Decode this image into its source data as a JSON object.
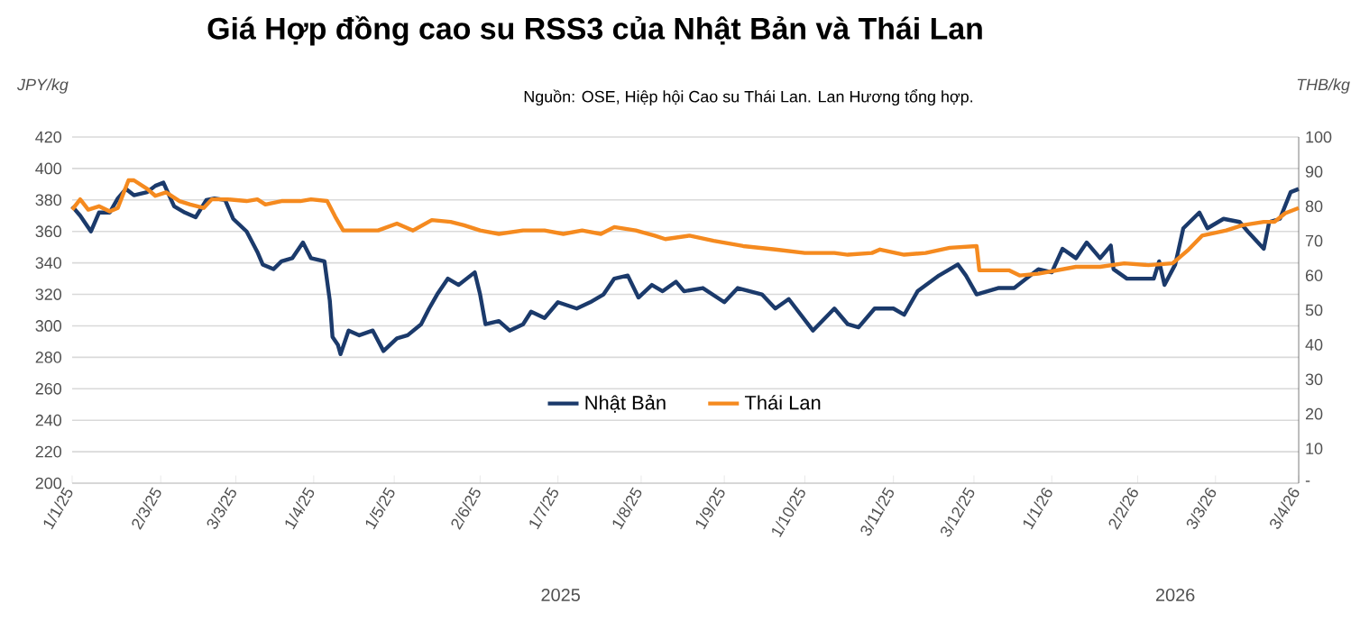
{
  "chart_data": {
    "type": "line",
    "title": "Giá Hợp đồng cao su RSS3 của Nhật Bản và Thái Lan",
    "ylabel": "JPY/kg",
    "y2label": "THB/kg",
    "annotations": [
      "Nguồn: OSE, Hiệp hội Cao su Thái Lan. Lan Hương tổng hợp.",
      "2025",
      "2026"
    ],
    "xlim": [
      "2025-01-01",
      "2026-04-03"
    ],
    "xticks": [
      {
        "value": "2025-01-01",
        "label": "1/1/25"
      },
      {
        "value": "2025-02-03",
        "label": "2/3/25"
      },
      {
        "value": "2025-03-03",
        "label": "3/3/25"
      },
      {
        "value": "2025-04-01",
        "label": "1/4/25"
      },
      {
        "value": "2025-05-01",
        "label": "1/5/25"
      },
      {
        "value": "2025-06-02",
        "label": "2/6/25"
      },
      {
        "value": "2025-07-01",
        "label": "1/7/25"
      },
      {
        "value": "2025-08-01",
        "label": "1/8/25"
      },
      {
        "value": "2025-09-01",
        "label": "1/9/25"
      },
      {
        "value": "2025-10-01",
        "label": "1/10/25"
      },
      {
        "value": "2025-11-03",
        "label": "3/11/25"
      },
      {
        "value": "2025-12-03",
        "label": "3/12/25"
      },
      {
        "value": "2026-01-01",
        "label": "1/1/26"
      },
      {
        "value": "2026-02-02",
        "label": "2/2/26"
      },
      {
        "value": "2026-03-03",
        "label": "3/3/26"
      },
      {
        "value": "2026-04-03",
        "label": "3/4/26"
      }
    ],
    "ylim": [
      200,
      420
    ],
    "yticks": [
      200,
      220,
      240,
      260,
      280,
      300,
      320,
      340,
      360,
      380,
      400,
      420
    ],
    "y2lim": [
      0,
      100
    ],
    "y2ticks": [
      {
        "value": 0,
        "label": "-"
      },
      10,
      20,
      30,
      40,
      50,
      60,
      70,
      80,
      90,
      100
    ],
    "grid": "y",
    "legend": "bottom",
    "marker": "none",
    "line_style": "solid",
    "series": [
      {
        "name": "Nhật Bản",
        "color": "#1b3a6b",
        "x": [
          "2025-01-01",
          "2025-01-04",
          "2025-01-08",
          "2025-01-11",
          "2025-01-15",
          "2025-01-18",
          "2025-01-21",
          "2025-01-24",
          "2025-01-29",
          "2025-02-01",
          "2025-02-04",
          "2025-02-08",
          "2025-02-12",
          "2025-02-16",
          "2025-02-20",
          "2025-02-23",
          "2025-02-27",
          "2025-03-02",
          "2025-03-07",
          "2025-03-11",
          "2025-03-13",
          "2025-03-17",
          "2025-03-20",
          "2025-03-24",
          "2025-03-28",
          "2025-03-31",
          "2025-04-05",
          "2025-04-07",
          "2025-04-08",
          "2025-04-10",
          "2025-04-11",
          "2025-04-14",
          "2025-04-18",
          "2025-04-23",
          "2025-04-27",
          "2025-05-02",
          "2025-05-06",
          "2025-05-11",
          "2025-05-14",
          "2025-05-17",
          "2025-05-21",
          "2025-05-25",
          "2025-05-31",
          "2025-06-02",
          "2025-06-04",
          "2025-06-09",
          "2025-06-13",
          "2025-06-18",
          "2025-06-21",
          "2025-06-26",
          "2025-07-01",
          "2025-07-08",
          "2025-07-13",
          "2025-07-18",
          "2025-07-22",
          "2025-07-27",
          "2025-07-31",
          "2025-08-05",
          "2025-08-09",
          "2025-08-14",
          "2025-08-17",
          "2025-08-24",
          "2025-09-01",
          "2025-09-06",
          "2025-09-15",
          "2025-09-20",
          "2025-09-25",
          "2025-10-04",
          "2025-10-12",
          "2025-10-17",
          "2025-10-21",
          "2025-10-27",
          "2025-11-03",
          "2025-11-07",
          "2025-11-12",
          "2025-11-20",
          "2025-11-27",
          "2025-11-30",
          "2025-12-04",
          "2025-12-12",
          "2025-12-18",
          "2025-12-27",
          "2026-01-01",
          "2026-01-05",
          "2026-01-10",
          "2026-01-14",
          "2026-01-19",
          "2026-01-23",
          "2026-01-24",
          "2026-01-29",
          "2026-02-08",
          "2026-02-10",
          "2026-02-12",
          "2026-02-16",
          "2026-02-19",
          "2026-02-25",
          "2026-02-28",
          "2026-03-06",
          "2026-03-12",
          "2026-03-15",
          "2026-03-21",
          "2026-03-23",
          "2026-03-27",
          "2026-03-31",
          "2026-04-03"
        ],
        "values": [
          376,
          370,
          360,
          372,
          372,
          381,
          387,
          383,
          385,
          389,
          391,
          376,
          372,
          369,
          380,
          381,
          380,
          368,
          360,
          347,
          339,
          336,
          341,
          343,
          353,
          343,
          341,
          316,
          293,
          288,
          282,
          297,
          294,
          297,
          284,
          292,
          294,
          301,
          311,
          320,
          330,
          326,
          334,
          320,
          301,
          303,
          297,
          301,
          309,
          305,
          315,
          311,
          315,
          320,
          330,
          332,
          318,
          326,
          322,
          328,
          322,
          324,
          315,
          324,
          320,
          311,
          317,
          297,
          311,
          301,
          299,
          311,
          311,
          307,
          322,
          332,
          339,
          332,
          320,
          324,
          324,
          336,
          334,
          349,
          343,
          353,
          343,
          351,
          336,
          330,
          330,
          341,
          326,
          339,
          362,
          372,
          362,
          368,
          366,
          360,
          349,
          366,
          368,
          385,
          387
        ]
      },
      {
        "name": "Thái Lan",
        "color": "#f58a1f",
        "axis": "y2",
        "x": [
          "2025-01-01",
          "2025-01-04",
          "2025-01-07",
          "2025-01-11",
          "2025-01-15",
          "2025-01-18",
          "2025-01-22",
          "2025-01-24",
          "2025-01-29",
          "2025-02-01",
          "2025-02-05",
          "2025-02-10",
          "2025-02-14",
          "2025-02-19",
          "2025-02-22",
          "2025-02-28",
          "2025-03-07",
          "2025-03-11",
          "2025-03-14",
          "2025-03-20",
          "2025-03-27",
          "2025-03-31",
          "2025-04-06",
          "2025-04-09",
          "2025-04-12",
          "2025-04-18",
          "2025-04-25",
          "2025-05-02",
          "2025-05-08",
          "2025-05-15",
          "2025-05-22",
          "2025-05-27",
          "2025-06-02",
          "2025-06-09",
          "2025-06-18",
          "2025-06-26",
          "2025-07-03",
          "2025-07-10",
          "2025-07-17",
          "2025-07-22",
          "2025-07-30",
          "2025-08-06",
          "2025-08-10",
          "2025-08-19",
          "2025-08-28",
          "2025-09-08",
          "2025-09-20",
          "2025-10-01",
          "2025-10-12",
          "2025-10-17",
          "2025-10-26",
          "2025-10-29",
          "2025-11-07",
          "2025-11-15",
          "2025-11-24",
          "2025-12-04",
          "2025-12-05",
          "2025-12-16",
          "2025-12-20",
          "2025-12-27",
          "2026-01-10",
          "2026-01-19",
          "2026-01-28",
          "2026-02-06",
          "2026-02-15",
          "2026-02-21",
          "2026-02-26",
          "2026-03-07",
          "2026-03-13",
          "2026-03-21",
          "2026-03-25",
          "2026-03-29",
          "2026-04-03"
        ],
        "values": [
          79,
          82,
          79,
          80,
          78.5,
          79.5,
          87.5,
          87.5,
          85,
          83,
          84,
          81.5,
          80.5,
          79.5,
          82,
          82,
          81.5,
          82,
          80.5,
          81.5,
          81.5,
          82,
          81.5,
          77,
          73,
          73,
          73,
          75,
          73,
          76,
          75.5,
          74.5,
          73,
          72,
          73,
          73,
          72,
          73,
          72,
          74,
          73,
          71.5,
          70.5,
          71.5,
          70,
          68.5,
          67.5,
          66.5,
          66.5,
          66,
          66.5,
          67.5,
          66,
          66.5,
          68,
          68.5,
          61.5,
          61.5,
          60,
          60.5,
          62.5,
          62.5,
          63.5,
          63,
          63.5,
          67.5,
          71.5,
          73,
          74.5,
          75.5,
          75.5,
          78,
          79.5
        ]
      }
    ]
  }
}
